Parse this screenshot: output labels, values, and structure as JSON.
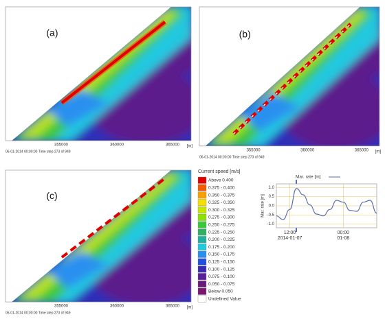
{
  "panels": [
    {
      "label": "(a)",
      "x_ticks": [
        "355000",
        "360000",
        "365000"
      ],
      "unit": "[m]",
      "footer": "06-01-2014 00:00:00  Time step 273 of 949"
    },
    {
      "label": "(b)",
      "x_ticks": [
        "355000",
        "360000",
        "365000"
      ],
      "unit": "[m]",
      "footer": "06-01-2014 00:00:00  Time step 273 of 949"
    },
    {
      "label": "(c)",
      "x_ticks": [
        "355000",
        "360000",
        "365000"
      ],
      "unit": "[m]",
      "footer": "06-01-2014 00:00:00  Time step 273 of 949"
    }
  ],
  "legend": {
    "title": "Current speed [m/s]",
    "items": [
      {
        "label": "Above 0.400",
        "color": "#e00000"
      },
      {
        "label": "0.375 - 0.400",
        "color": "#f05a00"
      },
      {
        "label": "0.350 - 0.375",
        "color": "#f7a000"
      },
      {
        "label": "0.325 - 0.350",
        "color": "#f5e000"
      },
      {
        "label": "0.300 - 0.325",
        "color": "#c8e600"
      },
      {
        "label": "0.275 - 0.300",
        "color": "#8ee000"
      },
      {
        "label": "0.250 - 0.275",
        "color": "#3cc83c"
      },
      {
        "label": "0.225 - 0.250",
        "color": "#30b060"
      },
      {
        "label": "0.200 - 0.225",
        "color": "#20b0a0"
      },
      {
        "label": "0.175 - 0.200",
        "color": "#20c8e0"
      },
      {
        "label": "0.150 - 0.175",
        "color": "#2a90f0"
      },
      {
        "label": "0.125 - 0.150",
        "color": "#2050e0"
      },
      {
        "label": "0.100 - 0.125",
        "color": "#3a2ab0"
      },
      {
        "label": "0.075 - 0.100",
        "color": "#5a1e9a"
      },
      {
        "label": "0.050 - 0.075",
        "color": "#6a1a7a"
      },
      {
        "label": "Below 0.050",
        "color": "#7a1670"
      },
      {
        "label": "Undefined Value",
        "color": "#ffffff"
      }
    ]
  },
  "chart_data": {
    "type": "line",
    "categories": [
      null,
      null,
      "12:00",
      null,
      null,
      null,
      null,
      null,
      null,
      null,
      "00:00",
      null,
      null,
      null,
      null,
      null
    ],
    "dates": [
      null,
      null,
      "2014-01-07",
      null,
      null,
      null,
      null,
      null,
      null,
      null,
      "01-08",
      null,
      null,
      null,
      null,
      null
    ],
    "series": [
      {
        "name": "Mar. rate [m]",
        "color": "#5a6fb0",
        "values": [
          -0.55,
          -0.75,
          -0.2,
          0.95,
          0.6,
          0.05,
          -0.45,
          -0.55,
          -0.2,
          0.3,
          0.2,
          -0.25,
          -0.3,
          0.2,
          0.3,
          -0.4
        ]
      }
    ],
    "ylabel": "Mar. rate [m]",
    "ylim": [
      -1.2,
      1.2
    ],
    "yticks": [
      {
        "value": -1,
        "label": "-1.0"
      },
      {
        "value": -0.5,
        "label": "-0.5"
      },
      {
        "value": 0,
        "label": "0.0"
      },
      {
        "value": 0.5,
        "label": "0.5"
      },
      {
        "value": 1,
        "label": "1.0"
      }
    ],
    "grid": true
  }
}
